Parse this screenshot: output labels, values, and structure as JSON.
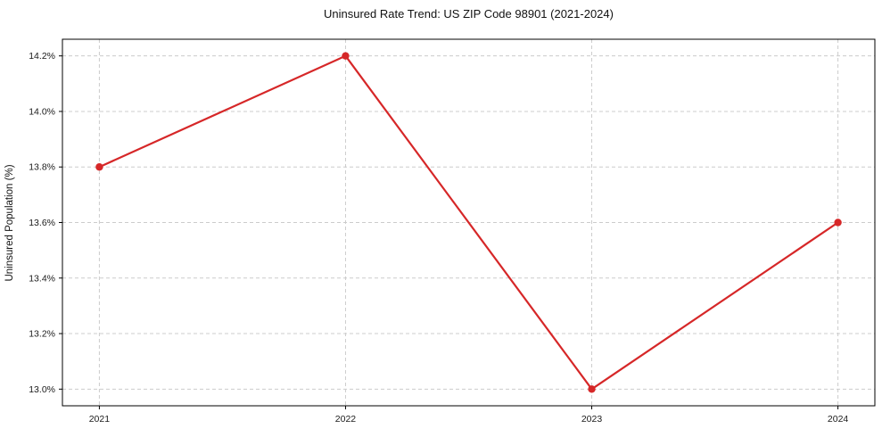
{
  "chart_data": {
    "type": "line",
    "title": "Uninsured Rate Trend: US ZIP Code 98901 (2021-2024)",
    "xlabel": "",
    "ylabel": "Uninsured Population (%)",
    "categories": [
      "2021",
      "2022",
      "2023",
      "2024"
    ],
    "x": [
      2021,
      2022,
      2023,
      2024
    ],
    "values": [
      13.8,
      14.2,
      13.0,
      13.6
    ],
    "y_ticks": [
      13.0,
      13.2,
      13.4,
      13.6,
      13.8,
      14.0,
      14.2
    ],
    "y_tick_labels": [
      "13.0%",
      "13.2%",
      "13.4%",
      "13.6%",
      "13.8%",
      "14.0%",
      "14.2%"
    ],
    "xlim": [
      2020.85,
      2024.15
    ],
    "ylim": [
      12.94,
      14.26
    ],
    "grid": true,
    "legend_visible": false,
    "marker": "circle",
    "colors": {
      "line": "#d62728",
      "marker": "#d62728",
      "grid": "#cccccc",
      "axis": "#000000",
      "text": "#1a1a1a",
      "background": "#ffffff"
    }
  }
}
